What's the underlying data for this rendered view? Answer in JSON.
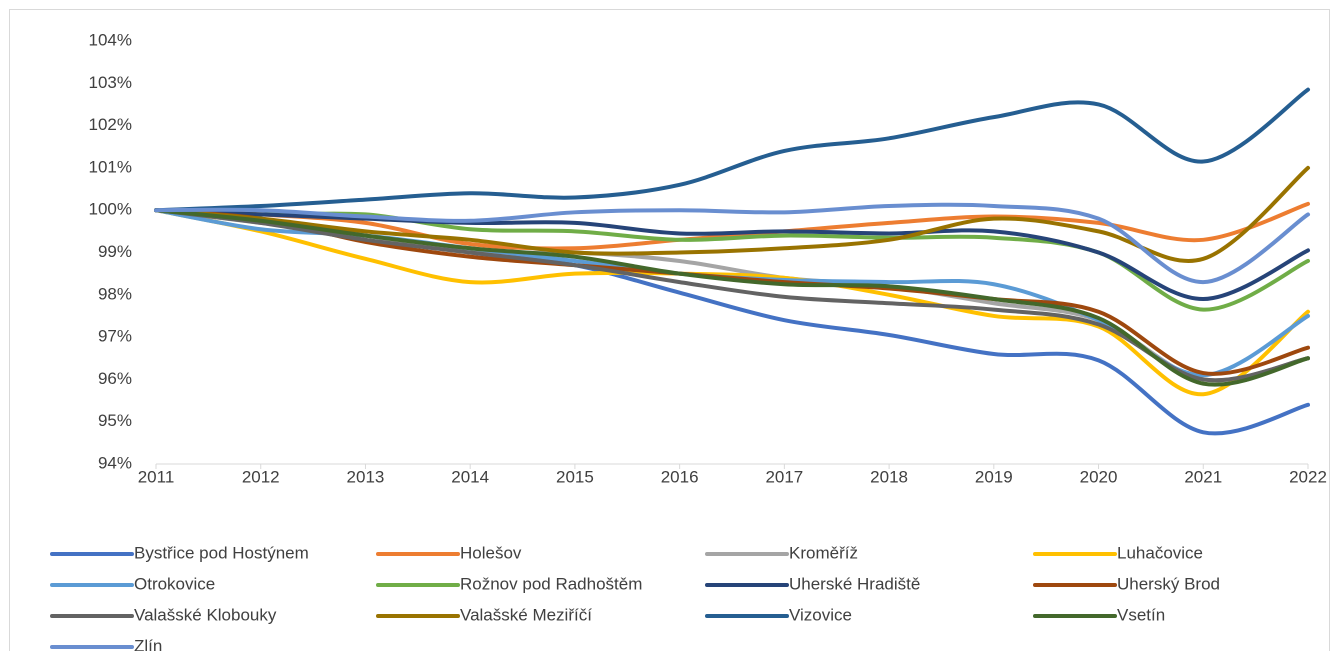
{
  "chart_data": {
    "type": "line",
    "categories": [
      "2011",
      "2012",
      "2013",
      "2014",
      "2015",
      "2016",
      "2017",
      "2018",
      "2019",
      "2020",
      "2021",
      "2022"
    ],
    "ylim": [
      94,
      104
    ],
    "yticks": [
      {
        "value": 94,
        "label": "94%"
      },
      {
        "value": 95,
        "label": "95%"
      },
      {
        "value": 96,
        "label": "96%"
      },
      {
        "value": 97,
        "label": "97%"
      },
      {
        "value": 98,
        "label": "98%"
      },
      {
        "value": 99,
        "label": "99%"
      },
      {
        "value": 100,
        "label": "100%"
      },
      {
        "value": 101,
        "label": "101%"
      },
      {
        "value": 102,
        "label": "102%"
      },
      {
        "value": 103,
        "label": "103%"
      },
      {
        "value": 104,
        "label": "104%"
      }
    ],
    "grid": false,
    "smooth": true,
    "legend": "bottom",
    "series": [
      {
        "name": "Bystřice pod Hostýnem",
        "color": "#4472c4",
        "values": [
          100,
          99.75,
          99.4,
          99.0,
          98.7,
          98.05,
          97.4,
          97.05,
          96.6,
          96.45,
          94.75,
          95.4
        ]
      },
      {
        "name": "Holešov",
        "color": "#ed7d31",
        "values": [
          100,
          99.9,
          99.7,
          99.2,
          99.1,
          99.3,
          99.5,
          99.7,
          99.85,
          99.7,
          99.3,
          100.15
        ]
      },
      {
        "name": "Kroměříž",
        "color": "#a5a5a5",
        "values": [
          100,
          99.7,
          99.4,
          99.0,
          99.0,
          98.8,
          98.4,
          98.2,
          97.8,
          97.4,
          96.0,
          96.5
        ]
      },
      {
        "name": "Luhačovice",
        "color": "#ffc000",
        "values": [
          100,
          99.5,
          98.85,
          98.3,
          98.5,
          98.5,
          98.4,
          98.0,
          97.5,
          97.25,
          95.65,
          97.6
        ]
      },
      {
        "name": "Otrokovice",
        "color": "#5b9bd5",
        "values": [
          100,
          99.55,
          99.4,
          99.1,
          98.8,
          98.5,
          98.35,
          98.3,
          98.25,
          97.4,
          96.1,
          97.5
        ]
      },
      {
        "name": "Rožnov pod Radhoštěm",
        "color": "#70ad47",
        "values": [
          100,
          99.9,
          99.9,
          99.55,
          99.5,
          99.3,
          99.4,
          99.35,
          99.35,
          99.0,
          97.65,
          98.8
        ]
      },
      {
        "name": "Uherské Hradiště",
        "color": "#264478",
        "values": [
          100,
          99.9,
          99.8,
          99.7,
          99.7,
          99.45,
          99.5,
          99.45,
          99.5,
          99.0,
          97.9,
          99.05
        ]
      },
      {
        "name": "Uherský Brod",
        "color": "#9e480e",
        "values": [
          100,
          99.8,
          99.25,
          98.9,
          98.7,
          98.5,
          98.3,
          98.15,
          97.9,
          97.6,
          96.15,
          96.75
        ]
      },
      {
        "name": "Valašské Klobouky",
        "color": "#636363",
        "values": [
          100,
          99.7,
          99.3,
          99.0,
          98.7,
          98.3,
          97.95,
          97.8,
          97.65,
          97.3,
          96.0,
          96.5
        ]
      },
      {
        "name": "Valašské Meziříčí",
        "color": "#997300",
        "values": [
          100,
          99.8,
          99.5,
          99.3,
          99.0,
          99.0,
          99.1,
          99.3,
          99.8,
          99.5,
          98.85,
          101.0
        ]
      },
      {
        "name": "Vizovice",
        "color": "#255e91",
        "values": [
          100,
          100.1,
          100.25,
          100.4,
          100.3,
          100.6,
          101.4,
          101.7,
          102.2,
          102.5,
          101.15,
          102.85
        ]
      },
      {
        "name": "Vsetín",
        "color": "#43682b",
        "values": [
          100,
          99.75,
          99.4,
          99.1,
          98.9,
          98.5,
          98.25,
          98.2,
          97.9,
          97.45,
          95.9,
          96.5
        ]
      },
      {
        "name": "Zlín",
        "color": "#698ed0",
        "values": [
          100,
          100,
          99.85,
          99.75,
          99.95,
          100,
          99.95,
          100.1,
          100.1,
          99.8,
          98.3,
          99.9
        ]
      }
    ]
  }
}
